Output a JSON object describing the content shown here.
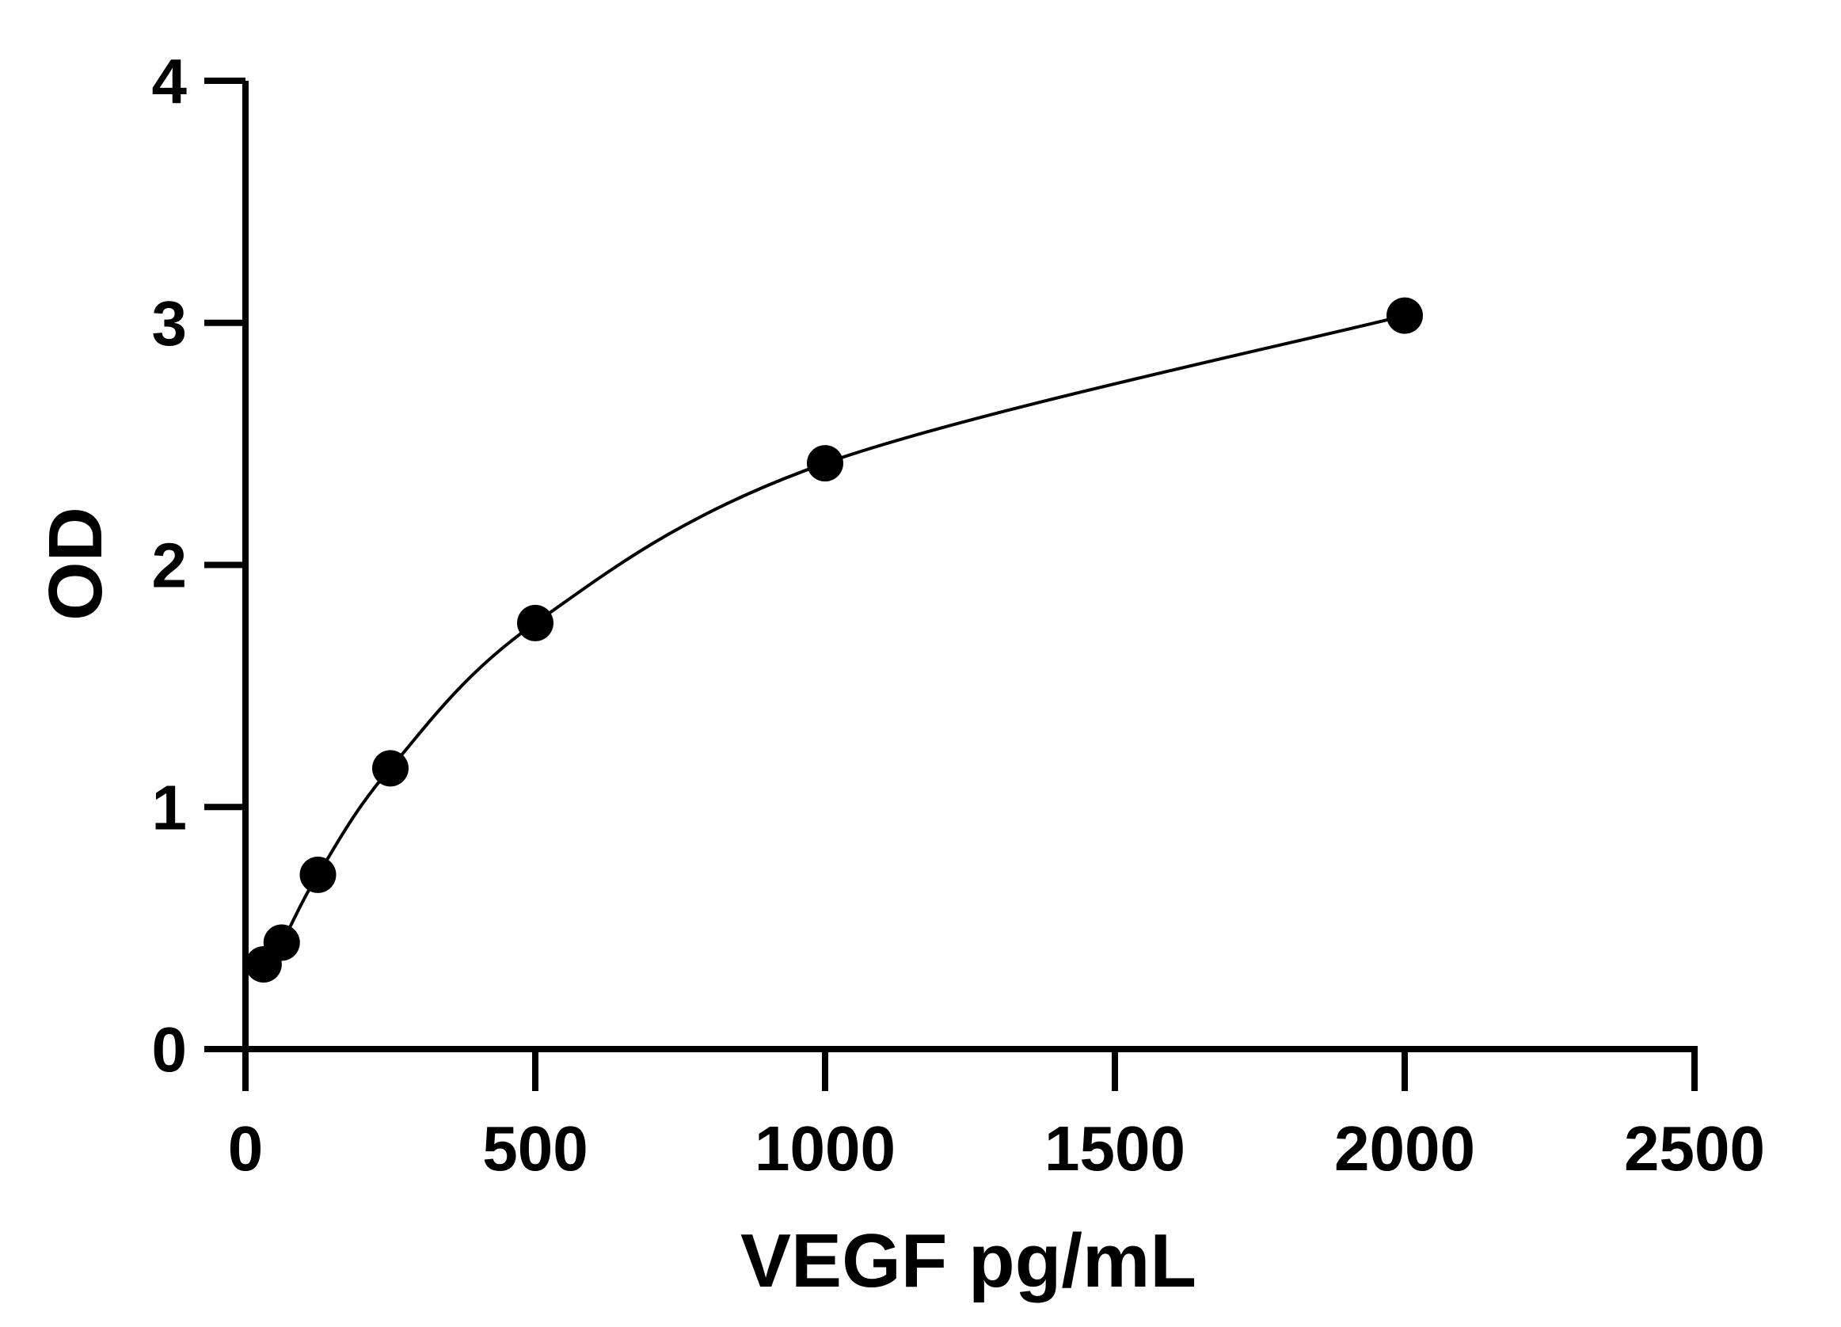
{
  "chart_data": {
    "type": "scatter",
    "xlabel": "VEGF pg/mL",
    "ylabel": "OD",
    "xlim": [
      0,
      2500
    ],
    "ylim": [
      0,
      4
    ],
    "xticks": [
      "0",
      "500",
      "1000",
      "1500",
      "2000",
      "2500"
    ],
    "yticks": [
      "0",
      "1",
      "2",
      "3",
      "4"
    ],
    "grid": false,
    "legend": "none",
    "series": [
      {
        "points": [
          {
            "x": 31.25,
            "y": 0.35
          },
          {
            "x": 62.5,
            "y": 0.44
          },
          {
            "x": 125,
            "y": 0.72
          },
          {
            "x": 250,
            "y": 1.16
          },
          {
            "x": 500,
            "y": 1.76
          },
          {
            "x": 1000,
            "y": 2.42
          },
          {
            "x": 2000,
            "y": 3.03
          }
        ],
        "fit_curve": true,
        "color": "#000000"
      }
    ]
  }
}
